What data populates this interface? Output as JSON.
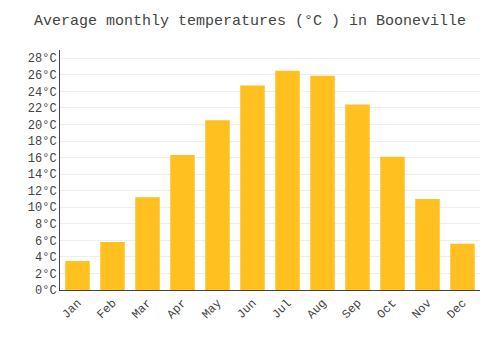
{
  "chart_data": {
    "type": "bar",
    "title": "Average monthly temperatures (°C ) in Booneville",
    "categories": [
      "Jan",
      "Feb",
      "Mar",
      "Apr",
      "May",
      "Jun",
      "Jul",
      "Aug",
      "Sep",
      "Oct",
      "Nov",
      "Dec"
    ],
    "values": [
      3.5,
      5.8,
      11.2,
      16.3,
      20.5,
      24.7,
      26.5,
      25.9,
      22.4,
      16.1,
      11.0,
      5.6
    ],
    "color": "#FFC020",
    "ylim": [
      0,
      29
    ],
    "yticks": [
      {
        "value": 0,
        "label": "0°C"
      },
      {
        "value": 2,
        "label": "2°C"
      },
      {
        "value": 4,
        "label": "4°C"
      },
      {
        "value": 6,
        "label": "6°C"
      },
      {
        "value": 8,
        "label": "8°C"
      },
      {
        "value": 10,
        "label": "10°C"
      },
      {
        "value": 12,
        "label": "12°C"
      },
      {
        "value": 14,
        "label": "14°C"
      },
      {
        "value": 16,
        "label": "16°C"
      },
      {
        "value": 18,
        "label": "18°C"
      },
      {
        "value": 20,
        "label": "20°C"
      },
      {
        "value": 22,
        "label": "22°C"
      },
      {
        "value": 24,
        "label": "24°C"
      },
      {
        "value": 26,
        "label": "26°C"
      },
      {
        "value": 28,
        "label": "28°C"
      }
    ],
    "grid": true
  }
}
